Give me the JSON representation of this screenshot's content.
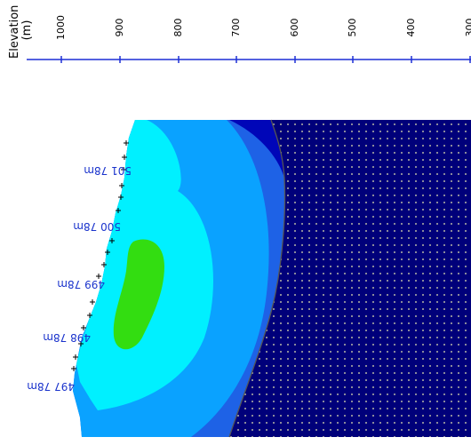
{
  "axis": {
    "title_line1": "Elevation",
    "title_line2": "(m)",
    "ticks": [
      "1000",
      "900",
      "800",
      "700",
      "600",
      "500",
      "400",
      "300"
    ]
  },
  "section_labels": [
    "501 78m",
    "500 78m",
    "499 78m",
    "498 78m",
    "497 78m"
  ],
  "colors": {
    "axis_line": "#1c2fd6",
    "zone_outer": "#1e62e6",
    "zone_mid": "#0aa2ff",
    "zone_inner": "#00f0ff",
    "zone_core": "#33dd11",
    "zone_dark": "#0006b8",
    "dotted_region": "#00007a",
    "dot": "#8a8a9a"
  }
}
